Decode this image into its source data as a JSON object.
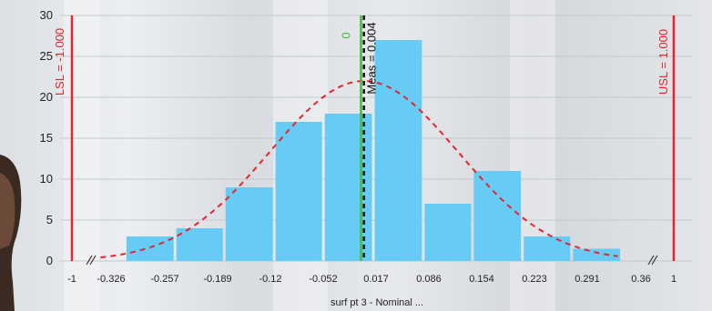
{
  "chart_data": {
    "type": "bar",
    "xlabel": "surf pt 3 - Nominal ...",
    "ylim": [
      0,
      30
    ],
    "y_ticks": [
      0,
      5,
      10,
      15,
      20,
      25,
      30
    ],
    "x_tick_labels": [
      "-1",
      "-0.326",
      "-0.257",
      "-0.189",
      "-0.12",
      "-0.052",
      "0.017",
      "0.086",
      "0.154",
      "0.223",
      "0.291",
      "0.36",
      "1"
    ],
    "bins": [
      {
        "from": -0.326,
        "to": -0.257,
        "count": 3
      },
      {
        "from": -0.257,
        "to": -0.189,
        "count": 4
      },
      {
        "from": -0.189,
        "to": -0.12,
        "count": 9
      },
      {
        "from": -0.12,
        "to": -0.052,
        "count": 17
      },
      {
        "from": -0.052,
        "to": 0.017,
        "count": 18
      },
      {
        "from": 0.017,
        "to": 0.086,
        "count": 27
      },
      {
        "from": 0.086,
        "to": 0.154,
        "count": 7
      },
      {
        "from": 0.154,
        "to": 0.223,
        "count": 11
      },
      {
        "from": 0.223,
        "to": 0.291,
        "count": 3
      },
      {
        "from": 0.291,
        "to": 0.36,
        "count": 1.5
      }
    ],
    "normal_curve": {
      "mean": 0.004,
      "peak": 22
    },
    "reference_lines": [
      {
        "label": "LSL = -1.000",
        "value": -1.0,
        "color": "#e3262e",
        "style": "solid"
      },
      {
        "label": "0",
        "value": 0.0,
        "color": "#4cb848",
        "style": "solid"
      },
      {
        "label": "Meas = 0.004",
        "value": 0.004,
        "color": "#111111",
        "style": "dashed"
      },
      {
        "label": "USL = 1.000",
        "value": 1.0,
        "color": "#e3262e",
        "style": "solid"
      }
    ],
    "axis_breaks": [
      "left",
      "right"
    ],
    "grid": "horizontal",
    "colors": {
      "bar": "#66ccf5",
      "curve": "#e3262e",
      "axis_text": "#222222"
    }
  }
}
